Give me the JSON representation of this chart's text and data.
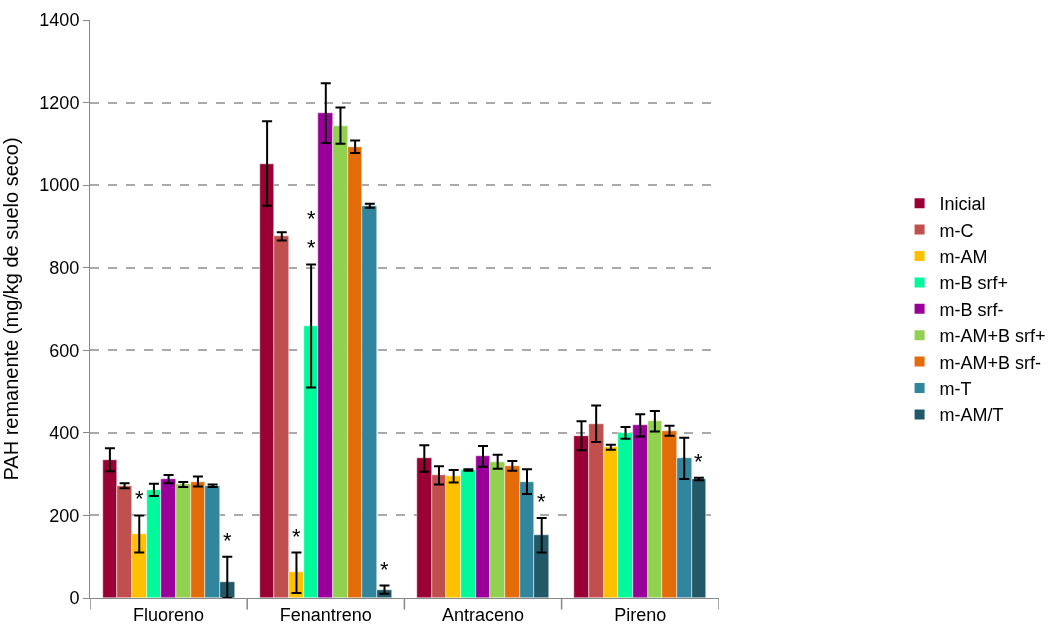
{
  "chart_data": {
    "type": "bar",
    "ylabel": "PAH remanente (mg/kg de suelo seco)",
    "categories": [
      "Fluoreno",
      "Fenantreno",
      "Antraceno",
      "Pireno"
    ],
    "series": [
      {
        "name": "Inicial",
        "color": "#990033",
        "values": [
          335,
          1052,
          338,
          393
        ],
        "errors": [
          28,
          [
            950,
            1155
          ],
          32,
          35
        ]
      },
      {
        "name": "m-C",
        "color": "#c0504d",
        "values": [
          272,
          876,
          297,
          422
        ],
        "errors": [
          6,
          10,
          22,
          44
        ]
      },
      {
        "name": "m-AM",
        "color": "#ffc000",
        "values": [
          155,
          62,
          295,
          365
        ],
        "errors": [
          45,
          [
            12,
            110
          ],
          15,
          6
        ],
        "value_labels": [
          "*",
          "*",
          null,
          null
        ]
      },
      {
        "name": "m-B srf+",
        "color": "#00f99a",
        "values": [
          262,
          658,
          310,
          400
        ],
        "errors": [
          15,
          [
            510,
            808
          ],
          2,
          14
        ],
        "value_labels": [
          null,
          "*\n*",
          null,
          null
        ]
      },
      {
        "name": "m-B srf-",
        "color": "#990099",
        "values": [
          288,
          1175,
          343,
          418
        ],
        "errors": [
          10,
          [
            1102,
            1247
          ],
          25,
          27
        ]
      },
      {
        "name": "m-AM+B srf+",
        "color": "#92d050",
        "values": [
          275,
          1143,
          330,
          428
        ],
        "errors": [
          6,
          [
            1100,
            1188
          ],
          17,
          25
        ]
      },
      {
        "name": "m-AM+B srf-",
        "color": "#e36c09",
        "values": [
          282,
          1093,
          320,
          405
        ],
        "errors": [
          12,
          15,
          12,
          12
        ]
      },
      {
        "name": "m-T",
        "color": "#31859c",
        "values": [
          272,
          950,
          282,
          338
        ],
        "errors": [
          3,
          5,
          30,
          50
        ]
      },
      {
        "name": "m-AM/T",
        "color": "#215968",
        "values": [
          38,
          20,
          152,
          288
        ],
        "errors": [
          [
            0,
            100
          ],
          10,
          42,
          3
        ],
        "value_labels": [
          "*",
          "*",
          "*",
          "*"
        ]
      }
    ],
    "ylim": [
      0,
      1400
    ],
    "yticks": [
      0,
      200,
      400,
      600,
      800,
      1000,
      1200,
      1400
    ],
    "grid": "y",
    "legend": "right"
  }
}
